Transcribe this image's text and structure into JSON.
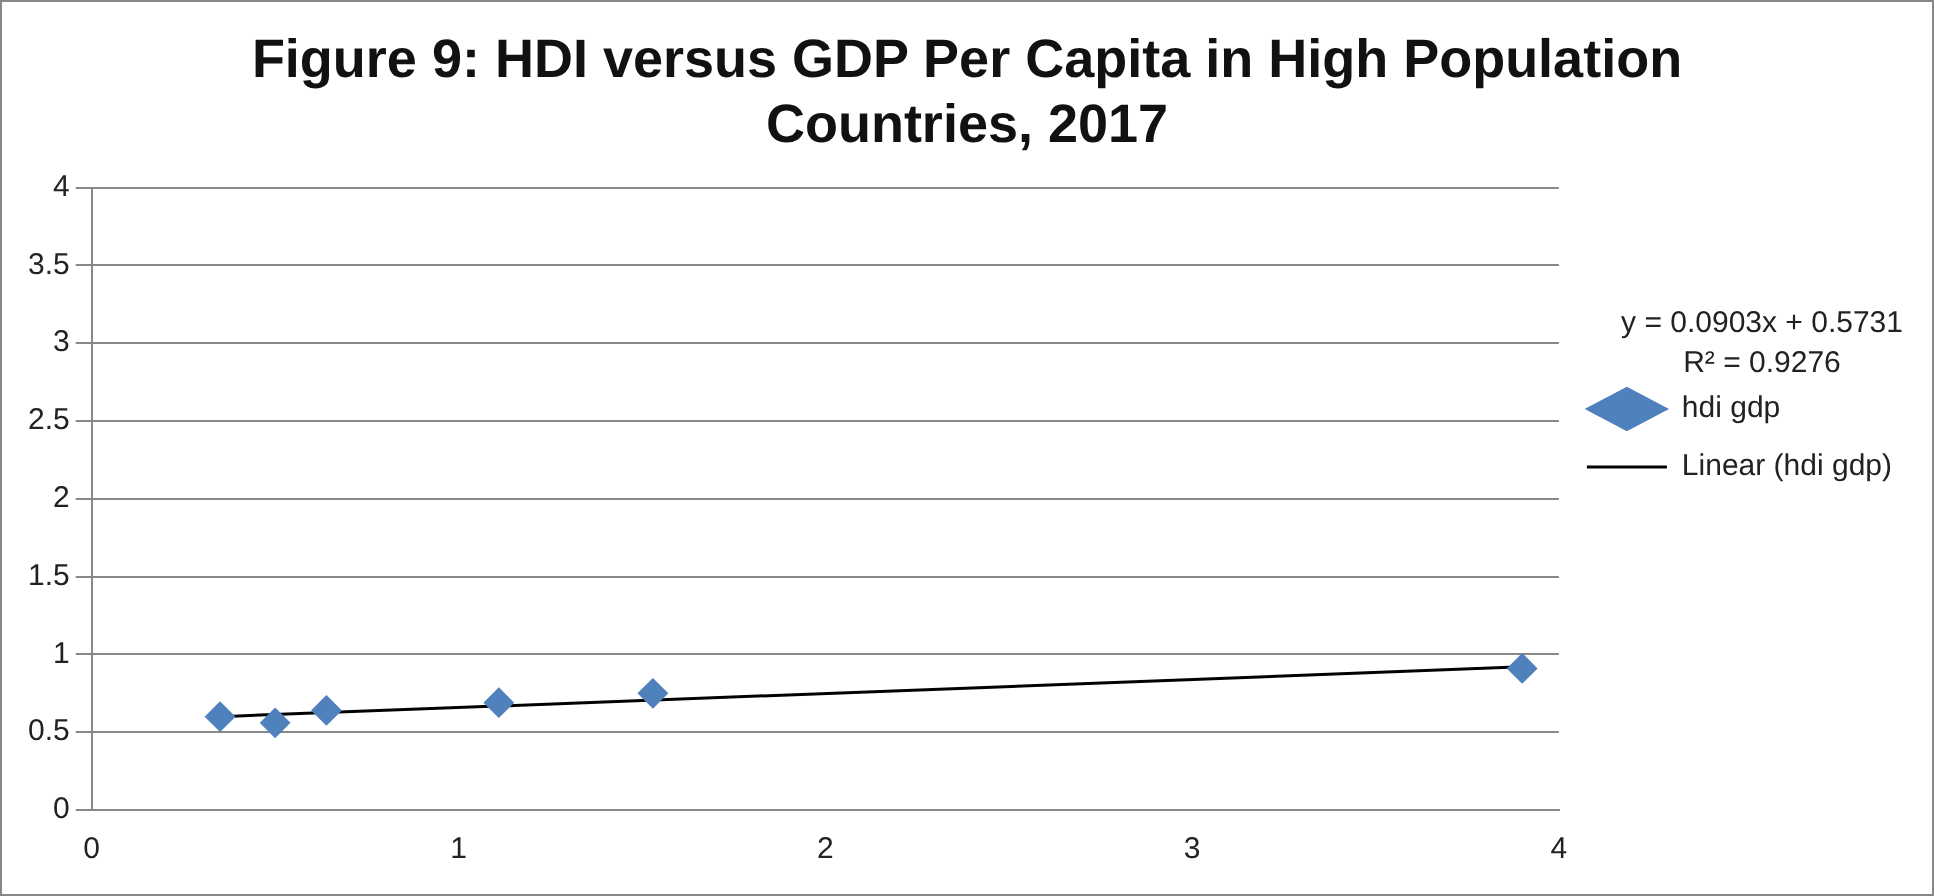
{
  "chart_data": {
    "type": "scatter",
    "title": "Figure 9: HDI versus GDP Per Capita in High Population Countries, 2017",
    "series": [
      {
        "name": "hdi gdp",
        "color": "#4f81bd",
        "marker": "diamond",
        "x": [
          0.35,
          0.5,
          0.64,
          1.11,
          1.53,
          3.9
        ],
        "values": [
          0.6,
          0.56,
          0.64,
          0.69,
          0.75,
          0.91
        ]
      },
      {
        "name": "Linear (hdi gdp)",
        "type": "line",
        "color": "#000000",
        "marker": "none",
        "x": [
          0.35,
          3.9
        ],
        "values": [
          0.6,
          0.92
        ]
      }
    ],
    "xlim": [
      0,
      4
    ],
    "xticks": [
      0,
      1,
      2,
      3,
      4
    ],
    "ylim": [
      0,
      4
    ],
    "yticks": [
      0,
      0.5,
      1,
      1.5,
      2,
      2.5,
      3,
      3.5,
      4
    ],
    "grid": "y",
    "legend": "right",
    "annotations": [
      "y = 0.0903x + 0.5731",
      "R² = 0.9276"
    ]
  }
}
